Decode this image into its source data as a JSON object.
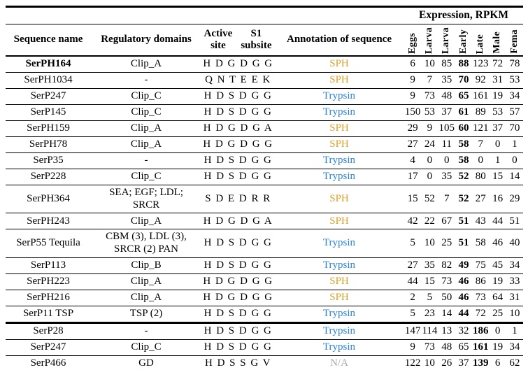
{
  "table": {
    "expression_header": "Expression, RPKM",
    "columns": {
      "sequence_name": "Sequence name",
      "regulatory_domains": "Regulatory domains",
      "active_site": {
        "l1": "Active",
        "l2": "site"
      },
      "s1_subsite": {
        "l1": "S1",
        "l2": "subsite"
      },
      "annotation": "Annotation of sequence",
      "stages": [
        "Eggs",
        "Larva",
        "Larva",
        "Early",
        "Late",
        "Male",
        "Fema"
      ]
    },
    "colors": {
      "sph": "#DFA126",
      "trypsin": "#2C83D5",
      "na": "#ABABAB"
    },
    "rows": [
      {
        "name": "SerPH164",
        "name_bold": true,
        "domains": "Clip_A",
        "site": "H D G D G G",
        "annotation": "SPH",
        "color": "sph",
        "values": [
          6,
          10,
          85,
          88,
          123,
          72,
          78
        ],
        "bold_index": 3,
        "thick_separator_below": false
      },
      {
        "name": "SerPH1034",
        "name_bold": false,
        "domains": "-",
        "site": "Q N T E E K",
        "annotation": "SPH",
        "color": "sph",
        "values": [
          9,
          7,
          35,
          70,
          92,
          31,
          53
        ],
        "bold_index": 3,
        "thick_separator_below": false
      },
      {
        "name": "SerP247",
        "name_bold": false,
        "domains": "Clip_C",
        "site": "H D S D G G",
        "annotation": "Trypsin",
        "color": "trypsin",
        "values": [
          9,
          73,
          48,
          65,
          161,
          19,
          34
        ],
        "bold_index": 3,
        "thick_separator_below": false
      },
      {
        "name": "SerP145",
        "name_bold": false,
        "domains": "Clip_C",
        "site": "H D S D G G",
        "annotation": "Trypsin",
        "color": "trypsin",
        "values": [
          150,
          53,
          37,
          61,
          89,
          53,
          57
        ],
        "bold_index": 3,
        "thick_separator_below": false
      },
      {
        "name": "SerPH159",
        "name_bold": false,
        "domains": "Clip_A",
        "site": "H D G D G A",
        "annotation": "SPH",
        "color": "sph",
        "values": [
          29,
          9,
          105,
          60,
          121,
          37,
          70
        ],
        "bold_index": 3,
        "thick_separator_below": false
      },
      {
        "name": "SerPH78",
        "name_bold": false,
        "domains": "Clip_A",
        "site": "H D G D G G",
        "annotation": "SPH",
        "color": "sph",
        "values": [
          27,
          24,
          11,
          58,
          7,
          0,
          1
        ],
        "bold_index": 3,
        "thick_separator_below": false
      },
      {
        "name": "SerP35",
        "name_bold": false,
        "domains": "-",
        "site": "H D S D G G",
        "annotation": "Trypsin",
        "color": "trypsin",
        "values": [
          4,
          0,
          0,
          58,
          0,
          1,
          0
        ],
        "bold_index": 3,
        "thick_separator_below": false
      },
      {
        "name": "SerP228",
        "name_bold": false,
        "domains": "Clip_C",
        "site": "H D S D G G",
        "annotation": "Trypsin",
        "color": "trypsin",
        "values": [
          17,
          0,
          35,
          52,
          80,
          15,
          14
        ],
        "bold_index": 3,
        "thick_separator_below": false
      },
      {
        "name": "SerPH364",
        "name_bold": false,
        "domains": "SEA; EGF; LDL;\nSRCR",
        "site": "S D E D R R",
        "annotation": "SPH",
        "color": "sph",
        "values": [
          15,
          52,
          7,
          52,
          27,
          16,
          29
        ],
        "bold_index": 3,
        "thick_separator_below": false
      },
      {
        "name": "SerPH243",
        "name_bold": false,
        "domains": "Clip_A",
        "site": "H D G D G A",
        "annotation": "SPH",
        "color": "sph",
        "values": [
          42,
          22,
          67,
          51,
          43,
          44,
          51
        ],
        "bold_index": 3,
        "thick_separator_below": false
      },
      {
        "name": "SerP55 Tequila",
        "name_bold": false,
        "domains": "CBM (3), LDL (3),\nSRCR (2) PAN",
        "site": "H D S D G G",
        "annotation": "Trypsin",
        "color": "trypsin",
        "values": [
          5,
          10,
          25,
          51,
          58,
          46,
          40
        ],
        "bold_index": 3,
        "thick_separator_below": false
      },
      {
        "name": "SerP113",
        "name_bold": false,
        "domains": "Clip_B",
        "site": "H D S D G G",
        "annotation": "Trypsin",
        "color": "trypsin",
        "values": [
          27,
          35,
          82,
          49,
          75,
          45,
          34
        ],
        "bold_index": 3,
        "thick_separator_below": false
      },
      {
        "name": "SerPH223",
        "name_bold": false,
        "domains": "Clip_A",
        "site": "H D G D G G",
        "annotation": "SPH",
        "color": "sph",
        "values": [
          44,
          15,
          73,
          46,
          86,
          19,
          33
        ],
        "bold_index": 3,
        "thick_separator_below": false
      },
      {
        "name": "SerPH216",
        "name_bold": false,
        "domains": "Clip_A",
        "site": "H D G D G G",
        "annotation": "SPH",
        "color": "sph",
        "values": [
          2,
          5,
          50,
          46,
          73,
          64,
          31
        ],
        "bold_index": 3,
        "thick_separator_below": false
      },
      {
        "name": "SerP11 TSP",
        "name_bold": false,
        "domains": "TSP (2)",
        "site": "H D S D G G",
        "annotation": "Trypsin",
        "color": "trypsin",
        "values": [
          5,
          23,
          14,
          44,
          72,
          25,
          10
        ],
        "bold_index": 3,
        "thick_separator_below": true
      },
      {
        "name": "SerP28",
        "name_bold": false,
        "domains": "-",
        "site": "H D S D G G",
        "annotation": "Trypsin",
        "color": "trypsin",
        "values": [
          147,
          114,
          13,
          32,
          186,
          0,
          1
        ],
        "bold_index": 4,
        "thick_separator_below": false
      },
      {
        "name": "SerP247",
        "name_bold": false,
        "domains": "Clip_C",
        "site": "H D S D G G",
        "annotation": "Trypsin",
        "color": "trypsin",
        "values": [
          9,
          73,
          48,
          65,
          161,
          19,
          34
        ],
        "bold_index": 4,
        "thick_separator_below": false
      },
      {
        "name": "SerP466",
        "name_bold": false,
        "domains": "GD",
        "site": "H D S S G V",
        "annotation": "N/A",
        "color": "na",
        "values": [
          122,
          10,
          26,
          37,
          139,
          6,
          62
        ],
        "bold_index": 4,
        "thick_separator_below": false
      }
    ]
  }
}
